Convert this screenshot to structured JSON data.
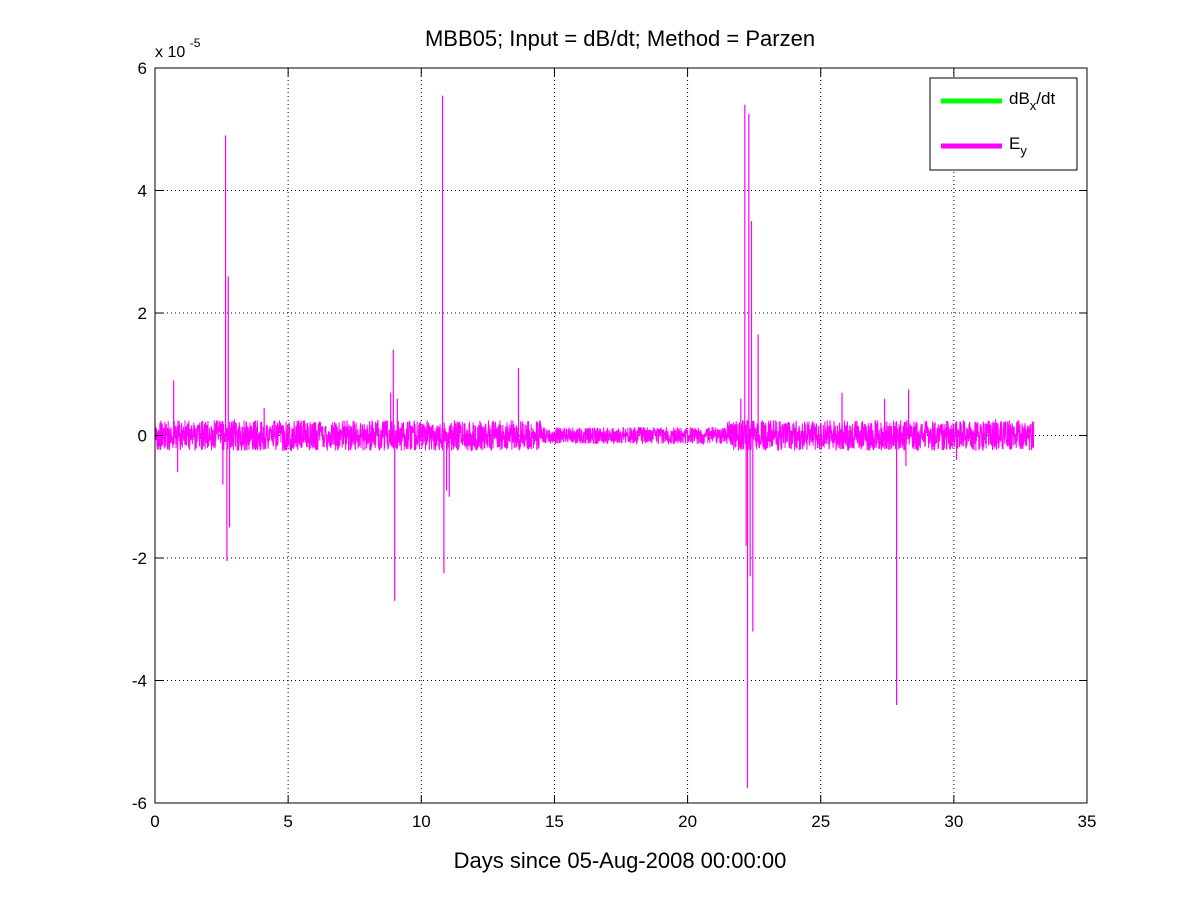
{
  "chart_data": {
    "type": "line",
    "title": "MBB05; Input = dB/dt; Method = Parzen",
    "xlabel": "Days since 05-Aug-2008 00:00:00",
    "ylabel": "",
    "y_multiplier_label": {
      "base": "x 10",
      "exponent": "-5"
    },
    "xlim": [
      0,
      35
    ],
    "ylim": [
      -6,
      6
    ],
    "x_ticks": [
      "0",
      "5",
      "10",
      "15",
      "20",
      "25",
      "30",
      "35"
    ],
    "y_ticks": [
      "6",
      "4",
      "2",
      "0",
      "-2",
      "-4",
      "-6"
    ],
    "x_tick_values": [
      0,
      5,
      10,
      15,
      20,
      25,
      30,
      35
    ],
    "y_tick_values": [
      6,
      4,
      2,
      0,
      -2,
      -4,
      -6
    ],
    "grid": true,
    "legend_position": "top-right",
    "series": [
      {
        "legend_main": "dB",
        "legend_sub": "x",
        "legend_tail": "/dt",
        "color": "#00ff00",
        "x_range": [
          0,
          33
        ],
        "values": []
      },
      {
        "legend_main": "E",
        "legend_sub": "y",
        "legend_tail": "",
        "color": "#ff00ff",
        "x_range": [
          0,
          33
        ],
        "noise_amplitude": 0.25,
        "spikes": [
          {
            "x": 0.7,
            "y": 0.9
          },
          {
            "x": 0.85,
            "y": -0.6
          },
          {
            "x": 2.55,
            "y": -0.8
          },
          {
            "x": 2.65,
            "y": 4.9
          },
          {
            "x": 2.7,
            "y": -2.05
          },
          {
            "x": 2.75,
            "y": 2.6
          },
          {
            "x": 2.8,
            "y": -1.5
          },
          {
            "x": 4.1,
            "y": 0.45
          },
          {
            "x": 8.85,
            "y": 0.7
          },
          {
            "x": 8.95,
            "y": 1.4
          },
          {
            "x": 9.0,
            "y": -2.7
          },
          {
            "x": 9.1,
            "y": 0.6
          },
          {
            "x": 10.8,
            "y": 5.55
          },
          {
            "x": 10.85,
            "y": -2.25
          },
          {
            "x": 10.95,
            "y": -0.9
          },
          {
            "x": 11.05,
            "y": -1.0
          },
          {
            "x": 13.65,
            "y": 1.1
          },
          {
            "x": 22.0,
            "y": 0.6
          },
          {
            "x": 22.15,
            "y": 5.4
          },
          {
            "x": 22.2,
            "y": -1.8
          },
          {
            "x": 22.25,
            "y": -5.75
          },
          {
            "x": 22.3,
            "y": 5.25
          },
          {
            "x": 22.35,
            "y": -2.3
          },
          {
            "x": 22.4,
            "y": 3.5
          },
          {
            "x": 22.45,
            "y": -3.2
          },
          {
            "x": 22.65,
            "y": 1.65
          },
          {
            "x": 25.8,
            "y": 0.7
          },
          {
            "x": 27.4,
            "y": 0.6
          },
          {
            "x": 27.85,
            "y": -4.4
          },
          {
            "x": 28.3,
            "y": 0.75
          },
          {
            "x": 28.2,
            "y": -0.5
          },
          {
            "x": 30.1,
            "y": -0.4
          }
        ]
      }
    ]
  }
}
